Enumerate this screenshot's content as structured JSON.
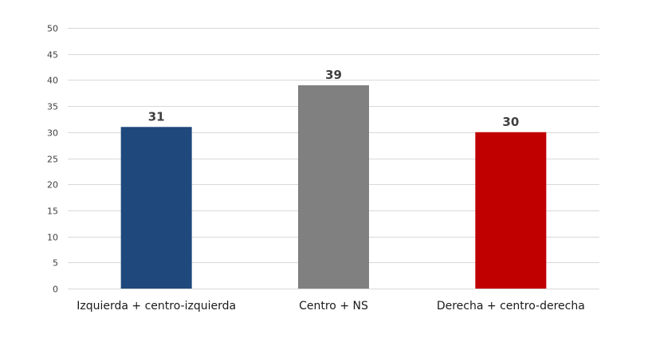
{
  "chart_data": {
    "type": "bar",
    "categories": [
      "Izquierda + centro-izquierda",
      "Centro + NS",
      "Derecha + centro-derecha"
    ],
    "values": [
      31,
      39,
      30
    ],
    "colors": [
      "#1f497d",
      "#808080",
      "#c00000"
    ],
    "data_labels": [
      "31",
      "39",
      "30"
    ],
    "title": "",
    "xlabel": "",
    "ylabel": "",
    "ylim": [
      0,
      50
    ],
    "yticks": [
      0,
      5,
      10,
      15,
      20,
      25,
      30,
      35,
      40,
      45,
      50
    ],
    "grid": true,
    "legend": "none"
  }
}
